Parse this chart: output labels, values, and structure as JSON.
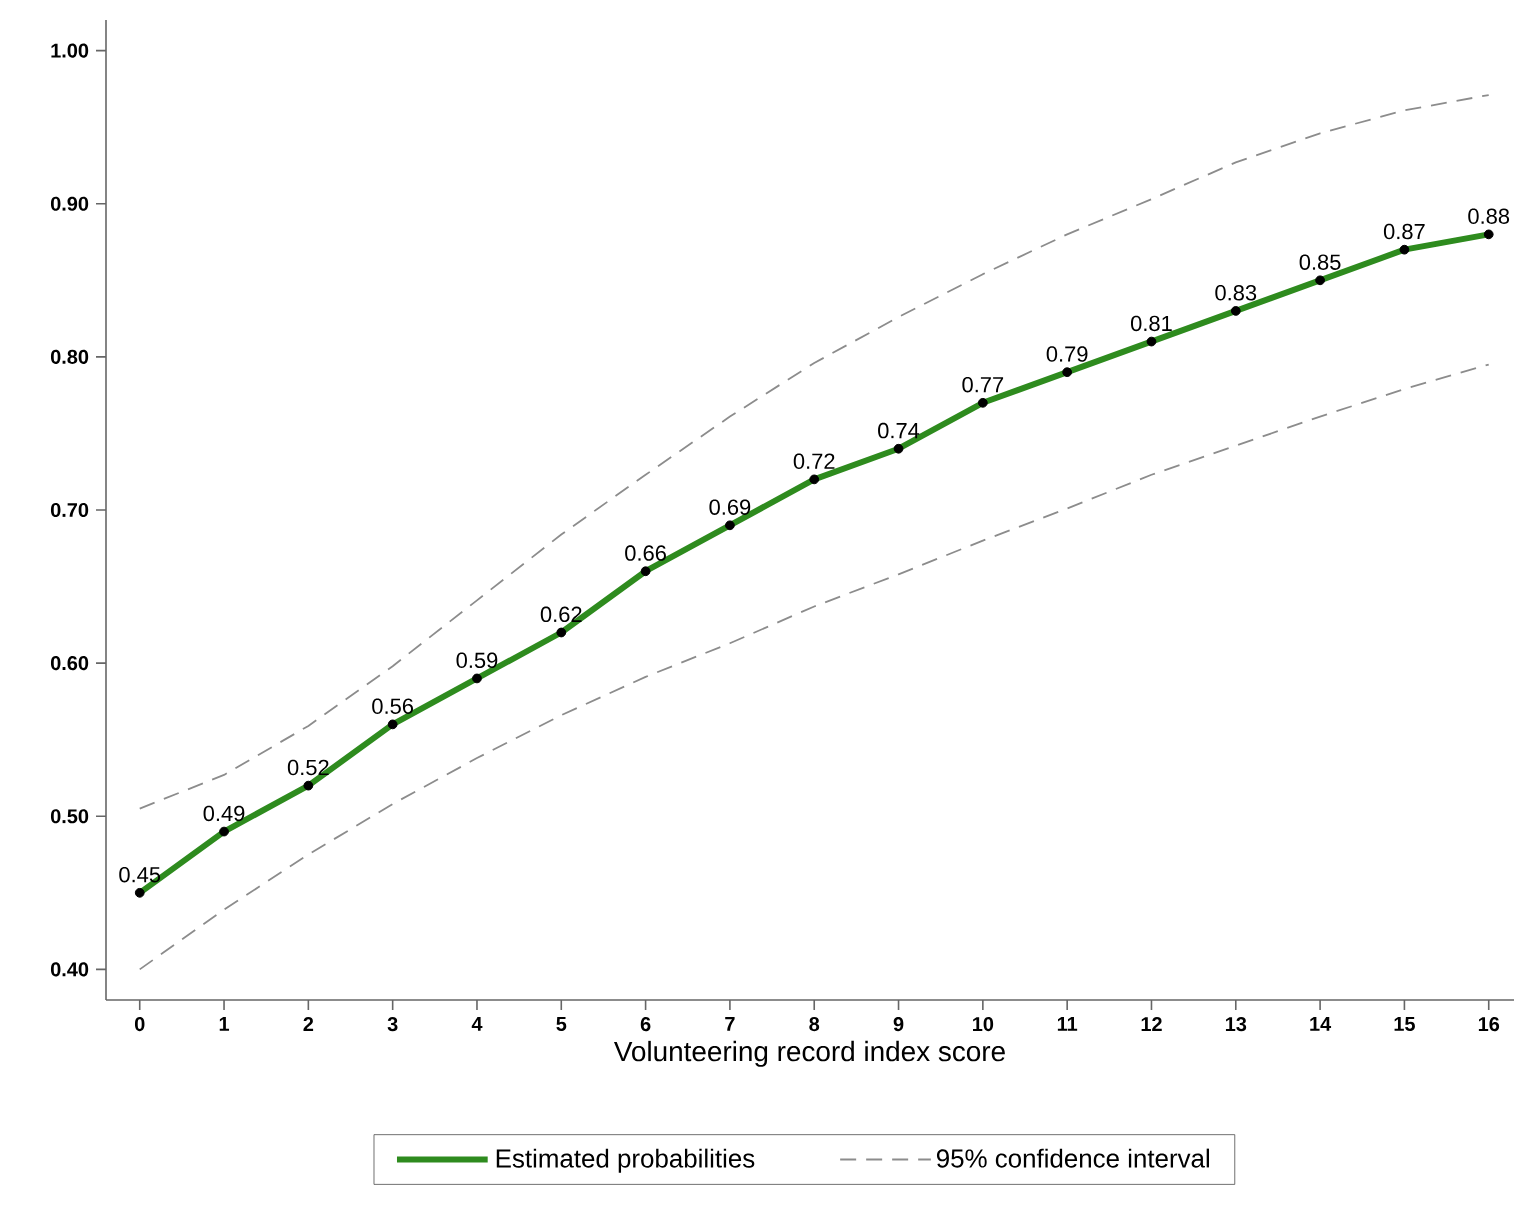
{
  "chart_data": {
    "type": "line",
    "xlabel": "Volunteering record index score",
    "x": [
      0,
      1,
      2,
      3,
      4,
      5,
      6,
      7,
      8,
      9,
      10,
      11,
      12,
      13,
      14,
      15,
      16
    ],
    "series": [
      {
        "name": "Estimated probabilities",
        "color": "#2e8b1e",
        "marker": "circle",
        "line_style": "solid",
        "values": [
          0.45,
          0.49,
          0.52,
          0.56,
          0.59,
          0.62,
          0.66,
          0.69,
          0.72,
          0.74,
          0.77,
          0.79,
          0.81,
          0.83,
          0.85,
          0.87,
          0.88
        ],
        "value_labels": [
          "0.45",
          "0.49",
          "0.52",
          "0.56",
          "0.59",
          "0.62",
          "0.66",
          "0.69",
          "0.72",
          "0.74",
          "0.77",
          "0.79",
          "0.81",
          "0.83",
          "0.85",
          "0.87",
          "0.88"
        ]
      },
      {
        "name": "95% confidence interval",
        "color": "#8c8c8c",
        "marker": "none",
        "line_style": "dashed",
        "values": [
          0.505,
          0.527,
          0.559,
          0.598,
          0.641,
          0.684,
          0.723,
          0.761,
          0.796,
          0.826,
          0.854,
          0.88,
          0.903,
          0.927,
          0.946,
          0.961,
          0.971
        ]
      },
      {
        "color": "#8c8c8c",
        "marker": "none",
        "line_style": "dashed",
        "values": [
          0.4,
          0.439,
          0.475,
          0.508,
          0.538,
          0.566,
          0.591,
          0.613,
          0.637,
          0.658,
          0.68,
          0.701,
          0.723,
          0.742,
          0.761,
          0.779,
          0.795
        ]
      }
    ],
    "xlim": [
      -0.4,
      16.3
    ],
    "ylim": [
      0.38,
      1.02
    ],
    "xticks": [
      0,
      1,
      2,
      3,
      4,
      5,
      6,
      7,
      8,
      9,
      10,
      11,
      12,
      13,
      14,
      15,
      16
    ],
    "yticks": [
      {
        "value": 0.4,
        "label": "0.40"
      },
      {
        "value": 0.5,
        "label": "0.50"
      },
      {
        "value": 0.6,
        "label": "0.60"
      },
      {
        "value": 0.7,
        "label": "0.70"
      },
      {
        "value": 0.8,
        "label": "0.80"
      },
      {
        "value": 0.9,
        "label": "0.90"
      },
      {
        "value": 1.0,
        "label": "1.00"
      }
    ],
    "grid": false,
    "legend": "bottom"
  }
}
